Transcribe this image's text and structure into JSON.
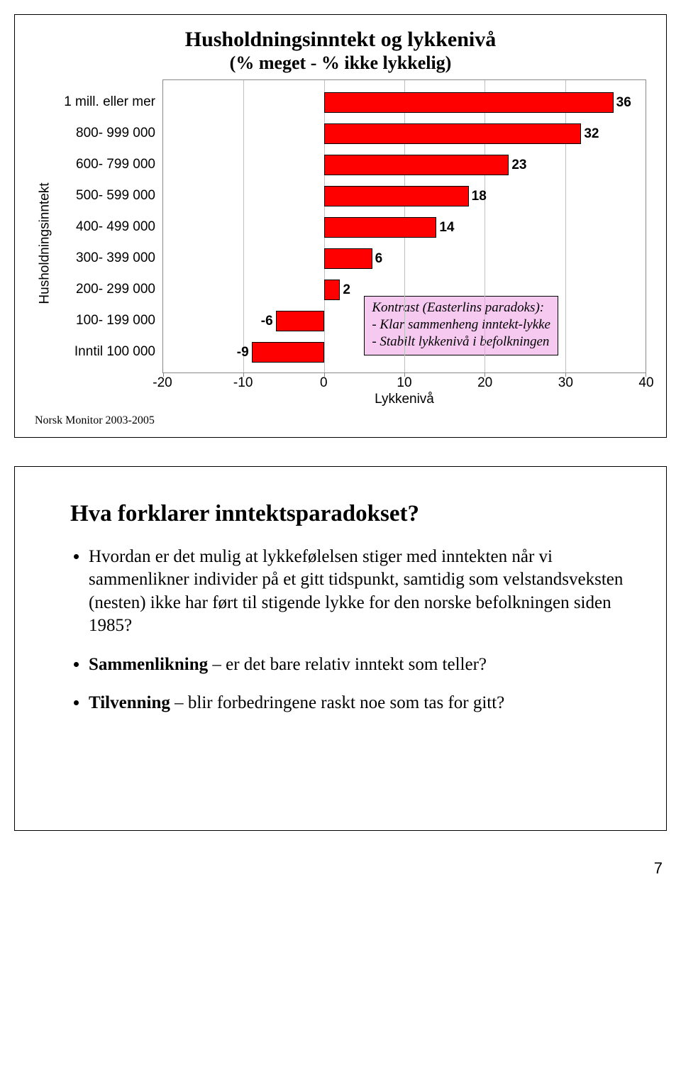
{
  "slide1": {
    "title": "Husholdningsinntekt og lykkenivå",
    "subtitle": "(% meget - % ikke lykkelig)",
    "ylabel": "Husholdningsinntekt",
    "xlabel": "Lykkenivå",
    "categories": [
      "1 mill. eller mer",
      "800- 999 000",
      "600- 799 000",
      "500- 599 000",
      "400- 499 000",
      "300- 399 000",
      "200- 299 000",
      "100- 199 000",
      "Inntil 100 000"
    ],
    "values": [
      36,
      32,
      23,
      18,
      14,
      6,
      2,
      -6,
      -9
    ],
    "bar_fill": "#ff0000",
    "bar_border": "#000000",
    "xmin": -20,
    "xmax": 40,
    "xtick_step": 10,
    "grid_color": "#c0c0c0",
    "plot_border": "#888888",
    "background": "#ffffff",
    "label_font": "Arial",
    "label_fontsize": 19,
    "title_fontsize": 30,
    "chart_type": "horizontal-bar",
    "callout": {
      "bg": "#f5c9f0",
      "border": "#000000",
      "line1": "Kontrast (Easterlins paradoks):",
      "line2": "- Klar sammenheng inntekt-lykke",
      "line3": "- Stabilt lykkenivå i befolkningen"
    },
    "footer": "Norsk Monitor 2003-2005"
  },
  "slide2": {
    "title": "Hva forklarer inntektsparadokset?",
    "bullets": [
      "Hvordan er det mulig at lykkefølelsen stiger med inntekten når vi sammenlikner individer på et gitt tidspunkt, samtidig som velstandsveksten (nesten) ikke har ført til stigende lykke for den norske befolkningen siden 1985?",
      "<b>Sammenlikning</b> – er det bare relativ inntekt som teller?",
      "<b>Tilvenning</b> – blir forbedringene raskt noe som tas for gitt?"
    ]
  },
  "page_number": "7"
}
